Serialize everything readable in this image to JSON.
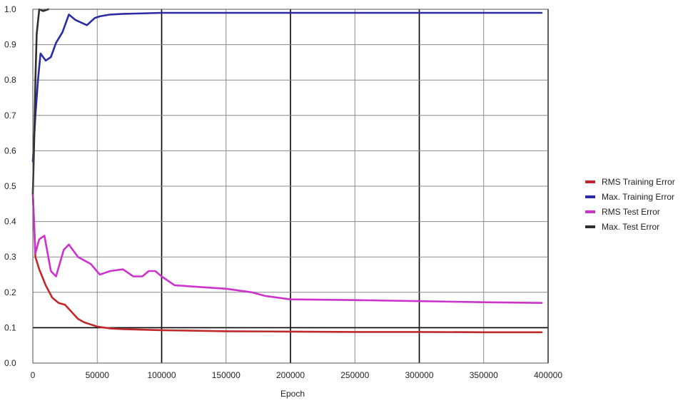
{
  "chart_data": {
    "type": "line",
    "title": "",
    "xlabel": "Epoch",
    "ylabel": "",
    "xlim": [
      0,
      400000
    ],
    "ylim": [
      0,
      1.0
    ],
    "x_ticks": [
      0,
      50000,
      100000,
      150000,
      200000,
      250000,
      300000,
      350000,
      400000
    ],
    "x_tick_labels": [
      "0",
      "50000",
      "100000",
      "150000",
      "200000",
      "250000",
      "300000",
      "350000",
      "400000"
    ],
    "y_ticks": [
      0,
      0.1,
      0.2,
      0.3,
      0.4,
      0.5,
      0.6,
      0.7,
      0.8,
      0.9,
      1.0
    ],
    "y_tick_labels": [
      "0.0",
      "0.1",
      "0.2",
      "0.3",
      "0.4",
      "0.5",
      "0.6",
      "0.7",
      "0.8",
      "0.9",
      "1.0"
    ],
    "grid": true,
    "legend_position": "right",
    "series": [
      {
        "name": "RMS Training Error",
        "color": "#c0282a",
        "x": [
          0,
          2000,
          5000,
          10000,
          15000,
          20000,
          25000,
          30000,
          35000,
          40000,
          50000,
          60000,
          70000,
          80000,
          100000,
          150000,
          200000,
          250000,
          300000,
          350000,
          395000
        ],
        "y": [
          0.48,
          0.3,
          0.265,
          0.22,
          0.185,
          0.17,
          0.165,
          0.145,
          0.125,
          0.115,
          0.103,
          0.098,
          0.096,
          0.095,
          0.093,
          0.09,
          0.089,
          0.088,
          0.088,
          0.087,
          0.087
        ]
      },
      {
        "name": "Max. Training Error",
        "color": "#2b2ba6",
        "x": [
          0,
          2000,
          4000,
          6000,
          10000,
          14000,
          18000,
          23000,
          28000,
          33000,
          42000,
          48000,
          52000,
          60000,
          70000,
          80000,
          100000,
          150000,
          200000,
          250000,
          300000,
          350000,
          395000
        ],
        "y": [
          0.57,
          0.7,
          0.8,
          0.875,
          0.855,
          0.865,
          0.905,
          0.935,
          0.985,
          0.97,
          0.955,
          0.975,
          0.98,
          0.985,
          0.987,
          0.988,
          0.99,
          0.99,
          0.99,
          0.99,
          0.99,
          0.99,
          0.99
        ]
      },
      {
        "name": "RMS Test Error",
        "color": "#cc33cc",
        "x": [
          0,
          2000,
          5000,
          9000,
          14000,
          18000,
          24000,
          28000,
          35000,
          45000,
          52000,
          60000,
          70000,
          78000,
          85000,
          90000,
          95000,
          100000,
          110000,
          130000,
          150000,
          170000,
          180000,
          200000,
          250000,
          300000,
          350000,
          395000
        ],
        "y": [
          0.48,
          0.31,
          0.35,
          0.36,
          0.26,
          0.245,
          0.32,
          0.335,
          0.3,
          0.28,
          0.25,
          0.26,
          0.265,
          0.245,
          0.245,
          0.26,
          0.26,
          0.245,
          0.22,
          0.215,
          0.21,
          0.2,
          0.19,
          0.18,
          0.178,
          0.175,
          0.172,
          0.17
        ]
      },
      {
        "name": "Max. Test Error",
        "color": "#303030",
        "x": [
          0,
          1000,
          2000,
          3000,
          5000,
          8000,
          12000
        ],
        "y": [
          0.48,
          0.62,
          0.8,
          0.93,
          1.0,
          0.995,
          1.0
        ]
      }
    ]
  }
}
